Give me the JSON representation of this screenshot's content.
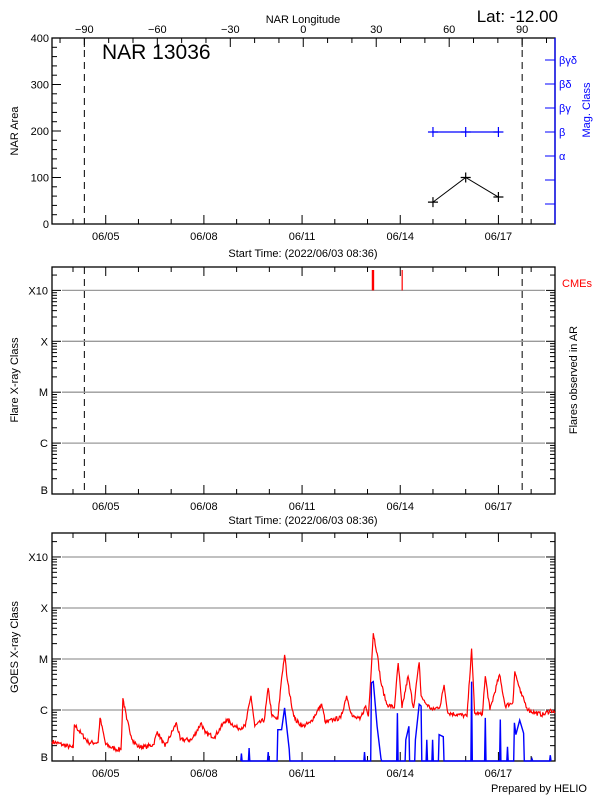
{
  "colors": {
    "axis": "#000000",
    "grid": "#9a9a9a",
    "mag": "#0000ff",
    "cme": "#ff0000",
    "goes_long": "#ff0000",
    "goes_short": "#0000ff"
  },
  "header": {
    "lat_label": "Lat: -12.00",
    "region_title": "NAR 13036"
  },
  "time_axis": {
    "xlim": [
      "06/03 08:36",
      "06/18 17:30"
    ],
    "year": 2022,
    "major_ticks": [
      "06/05",
      "06/08",
      "06/11",
      "06/14",
      "06/17"
    ],
    "start_label": "Start Time: (2022/06/03 08:36)"
  },
  "footer": {
    "credit": "Prepared by HELIO"
  },
  "chart_data": [
    {
      "type": "line",
      "panel": "nar",
      "ylabel": "NAR Area",
      "ylim": [
        0,
        400
      ],
      "yticks": [
        0,
        100,
        200,
        300,
        400
      ],
      "top_axis": {
        "label": "NAR Longitude",
        "ticks": [
          -90,
          -60,
          -30,
          0,
          30,
          60,
          90
        ],
        "range": [
          -103.3,
          103.5
        ],
        "limb_lines": [
          -90,
          90
        ]
      },
      "area": {
        "x": [
          "06/15 00:00",
          "06/16 00:00",
          "06/17 00:00"
        ],
        "y": [
          47,
          100,
          58
        ]
      },
      "mag_class": {
        "label": "Mag. Class",
        "levels": [
          "",
          "",
          "α",
          "β",
          "βγ",
          "βδ",
          "βγδ"
        ],
        "x": [
          "06/15 00:00",
          "06/16 00:00",
          "06/17 00:00"
        ],
        "y": [
          "β",
          "β",
          "β"
        ]
      }
    },
    {
      "type": "bar",
      "panel": "flares",
      "ylabel": "Flare X-ray Class",
      "right_label": "Flares observed in AR",
      "yscale": "log",
      "ylim": [
        1e-07,
        0.00288
      ],
      "yticks": [
        {
          "label": "B",
          "v": 1e-07
        },
        {
          "label": "C",
          "v": 1e-06
        },
        {
          "label": "M",
          "v": 1e-05
        },
        {
          "label": "X",
          "v": 0.0001
        },
        {
          "label": "X10",
          "v": 0.001
        }
      ],
      "flares": [],
      "cmes": {
        "label": "CMEs",
        "x": [
          "06/13 04:00",
          "06/14 01:25"
        ],
        "strong": [
          true,
          false
        ]
      }
    },
    {
      "type": "line",
      "panel": "goes",
      "ylabel": "GOES X-ray Class",
      "yscale": "log",
      "ylim": [
        1e-07,
        0.00295
      ],
      "yticks": [
        {
          "label": "B",
          "v": 1e-07
        },
        {
          "label": "C",
          "v": 1e-06
        },
        {
          "label": "M",
          "v": 1e-05
        },
        {
          "label": "X",
          "v": 0.0001
        },
        {
          "label": "X10",
          "v": 0.001
        }
      ],
      "long_channel": [
        [
          "06/03 08:36",
          2.4e-07
        ],
        [
          "06/03 16:14",
          2.1e-07
        ],
        [
          "06/04 00:10",
          1.8e-07
        ],
        [
          "06/04 01:00",
          5.2e-07
        ],
        [
          "06/04 05:47",
          3.5e-07
        ],
        [
          "06/04 11:22",
          2.3e-07
        ],
        [
          "06/04 18:23",
          2.3e-07
        ],
        [
          "06/04 19:48",
          7e-07
        ],
        [
          "06/05 00:00",
          2.1e-07
        ],
        [
          "06/05 07:00",
          1.7e-07
        ],
        [
          "06/05 11:13",
          1.7e-07
        ],
        [
          "06/05 12:37",
          1.7e-06
        ],
        [
          "06/05 15:25",
          6.5e-07
        ],
        [
          "06/05 19:38",
          2.6e-07
        ],
        [
          "06/05 23:50",
          1.9e-07
        ],
        [
          "06/06 05:26",
          1.9e-07
        ],
        [
          "06/06 11:03",
          2.1e-07
        ],
        [
          "06/06 13:51",
          3.8e-07
        ],
        [
          "06/06 19:28",
          1.9e-07
        ],
        [
          "06/07 03:52",
          5.6e-07
        ],
        [
          "06/07 06:40",
          2.6e-07
        ],
        [
          "06/07 15:05",
          2.6e-07
        ],
        [
          "06/07 22:06",
          5.6e-07
        ],
        [
          "06/08 00:54",
          3.5e-07
        ],
        [
          "06/08 07:54",
          3e-07
        ],
        [
          "06/08 16:19",
          6.5e-07
        ],
        [
          "06/09 00:43",
          4.4e-07
        ],
        [
          "06/09 06:20",
          4.8e-07
        ],
        [
          "06/09 10:32",
          1.9e-06
        ],
        [
          "06/09 13:20",
          4.8e-07
        ],
        [
          "06/09 20:21",
          6.5e-07
        ],
        [
          "06/09 23:10",
          2.7e-06
        ],
        [
          "06/10 01:58",
          7.5e-07
        ],
        [
          "06/10 06:10",
          6.5e-07
        ],
        [
          "06/10 08:58",
          4.2e-06
        ],
        [
          "06/10 11:13",
          1.2e-05
        ],
        [
          "06/10 13:10",
          3.9e-06
        ],
        [
          "06/10 15:59",
          1.4e-06
        ],
        [
          "06/10 18:47",
          6.5e-07
        ],
        [
          "06/11 00:23",
          4.8e-07
        ],
        [
          "06/11 06:00",
          5.6e-07
        ],
        [
          "06/11 14:24",
          1.3e-06
        ],
        [
          "06/11 17:13",
          5.6e-07
        ],
        [
          "06/11 22:49",
          6.5e-07
        ],
        [
          "06/12 04:26",
          7e-07
        ],
        [
          "06/12 08:38",
          1.9e-06
        ],
        [
          "06/12 12:50",
          7.5e-07
        ],
        [
          "06/12 18:27",
          6.5e-07
        ],
        [
          "06/12 22:39",
          1.2e-06
        ],
        [
          "06/13 00:37",
          7.5e-07
        ],
        [
          "06/13 04:16",
          3.2e-05
        ],
        [
          "06/13 07:03",
          1.3e-05
        ],
        [
          "06/13 09:52",
          3.4e-06
        ],
        [
          "06/13 14:04",
          1.3e-06
        ],
        [
          "06/13 19:41",
          1.1e-06
        ],
        [
          "06/13 22:29",
          8.3e-06
        ],
        [
          "06/14 01:18",
          1.1e-06
        ],
        [
          "06/14 05:47",
          4.6e-06
        ],
        [
          "06/14 09:42",
          1.1e-06
        ],
        [
          "06/14 13:54",
          8.6e-06
        ],
        [
          "06/14 15:18",
          1.9e-06
        ],
        [
          "06/14 18:07",
          1.4e-06
        ],
        [
          "06/14 23:43",
          1e-06
        ],
        [
          "06/15 05:20",
          1.2e-06
        ],
        [
          "06/15 08:08",
          3.1e-06
        ],
        [
          "06/15 10:57",
          8.7e-07
        ],
        [
          "06/15 19:21",
          8.1e-07
        ],
        [
          "06/16 00:58",
          7.5e-07
        ],
        [
          "06/16 04:19",
          1.6e-05
        ],
        [
          "06/16 06:33",
          8.7e-07
        ],
        [
          "06/16 12:10",
          8.1e-07
        ],
        [
          "06/16 14:24",
          4.6e-06
        ],
        [
          "06/16 17:47",
          1e-06
        ],
        [
          "06/17 00:47",
          4.9e-06
        ],
        [
          "06/17 05:00",
          1.2e-06
        ],
        [
          "06/17 10:36",
          1.4e-06
        ],
        [
          "06/17 12:00",
          5.7e-06
        ],
        [
          "06/17 16:13",
          2.2e-06
        ],
        [
          "06/17 21:49",
          1e-06
        ],
        [
          "06/18 03:26",
          8.7e-07
        ],
        [
          "06/18 09:02",
          8.1e-07
        ],
        [
          "06/18 14:38",
          1e-06
        ],
        [
          "06/18 17:27",
          8.7e-07
        ]
      ],
      "short_channel": [
        [
          "06/09 03:32",
          1.4e-07
        ],
        [
          "06/09 09:08",
          1.8e-07
        ],
        [
          "06/09 23:10",
          1.5e-07
        ],
        [
          "06/10 06:10",
          4.1e-07
        ],
        [
          "06/10 08:58",
          4.1e-07
        ],
        [
          "06/10 11:13",
          1.1e-06
        ],
        [
          "06/10 14:34",
          1.7e-07
        ],
        [
          "06/12 21:49",
          1.5e-07
        ],
        [
          "06/13 02:51",
          3.4e-06
        ],
        [
          "06/13 04:16",
          3.6e-06
        ],
        [
          "06/13 07:03",
          4.8e-07
        ],
        [
          "06/13 09:52",
          1.1e-07
        ],
        [
          "06/13 21:56",
          8.7e-07
        ],
        [
          "06/14 04:06",
          2.6e-07
        ],
        [
          "06/14 06:20",
          4.8e-07
        ],
        [
          "06/14 11:06",
          2.6e-07
        ],
        [
          "06/14 13:54",
          1.3e-06
        ],
        [
          "06/14 15:18",
          1.2e-06
        ],
        [
          "06/14 19:30",
          2.6e-07
        ],
        [
          "06/14 23:43",
          2.6e-07
        ],
        [
          "06/15 04:29",
          3.3e-07
        ],
        [
          "06/15 07:34",
          3e-07
        ],
        [
          "06/16 04:19",
          3.6e-06
        ],
        [
          "06/16 14:24",
          7e-07
        ],
        [
          "06/17 01:21",
          6.5e-07
        ],
        [
          "06/17 06:40",
          1.9e-07
        ],
        [
          "06/17 11:43",
          5.6e-07
        ],
        [
          "06/17 12:50",
          3.3e-07
        ],
        [
          "06/17 15:38",
          6.3e-07
        ],
        [
          "06/17 18:27",
          3.5e-07
        ],
        [
          "06/18 00:37",
          1.1e-07
        ],
        [
          "06/18 14:04",
          1.3e-07
        ]
      ]
    }
  ]
}
